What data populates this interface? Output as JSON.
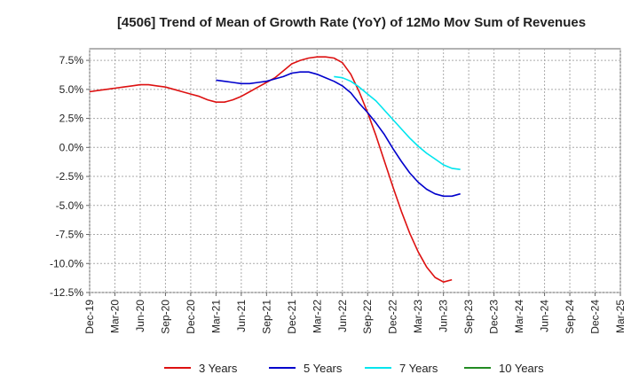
{
  "chart_data": {
    "type": "line",
    "title": "[4506]  Trend of Mean of Growth Rate (YoY) of 12Mo Mov Sum of Revenues",
    "xlabel": "",
    "ylabel": "",
    "x_ticks": [
      "Dec-19",
      "Mar-20",
      "Jun-20",
      "Sep-20",
      "Dec-20",
      "Mar-21",
      "Jun-21",
      "Sep-21",
      "Dec-21",
      "Mar-22",
      "Jun-22",
      "Sep-22",
      "Dec-22",
      "Mar-23",
      "Jun-23",
      "Sep-23",
      "Dec-23",
      "Mar-24",
      "Jun-24",
      "Sep-24",
      "Dec-24",
      "Mar-25"
    ],
    "y_ticks": [
      "7.5%",
      "5.0%",
      "2.5%",
      "0.0%",
      "-2.5%",
      "-5.0%",
      "-7.5%",
      "-10.0%",
      "-12.5%"
    ],
    "y_tick_values": [
      7.5,
      5.0,
      2.5,
      0.0,
      -2.5,
      -5.0,
      -7.5,
      -10.0,
      -12.5
    ],
    "ylim": [
      -12.5,
      8.5
    ],
    "grid": true,
    "legend_position": "bottom",
    "series": [
      {
        "name": "3 Years",
        "color": "#dd1111",
        "start_index": 0,
        "values": [
          4.8,
          4.9,
          5.0,
          5.1,
          5.2,
          5.3,
          5.4,
          5.4,
          5.3,
          5.2,
          5.0,
          4.8,
          4.6,
          4.4,
          4.1,
          3.9,
          3.9,
          4.1,
          4.4,
          4.8,
          5.2,
          5.6,
          6.0,
          6.6,
          7.2,
          7.5,
          7.7,
          7.8,
          7.8,
          7.7,
          7.3,
          6.3,
          4.8,
          3.0,
          1.0,
          -1.2,
          -3.4,
          -5.5,
          -7.4,
          -9.0,
          -10.3,
          -11.2,
          -11.6,
          -11.4
        ]
      },
      {
        "name": "5 Years",
        "color": "#0000cc",
        "start_index": 15,
        "values": [
          5.8,
          5.7,
          5.6,
          5.5,
          5.5,
          5.6,
          5.7,
          5.9,
          6.1,
          6.4,
          6.5,
          6.5,
          6.3,
          6.0,
          5.7,
          5.3,
          4.7,
          3.8,
          3.0,
          2.1,
          1.1,
          -0.1,
          -1.2,
          -2.2,
          -3.0,
          -3.6,
          -4.0,
          -4.2,
          -4.2,
          -4.0
        ]
      },
      {
        "name": "7 Years",
        "color": "#00e5ee",
        "start_index": 29,
        "values": [
          6.1,
          6.0,
          5.7,
          5.2,
          4.6,
          4.0,
          3.2,
          2.4,
          1.6,
          0.8,
          0.1,
          -0.5,
          -1.0,
          -1.5,
          -1.8,
          -1.9
        ]
      },
      {
        "name": "10 Years",
        "color": "#228b22",
        "start_index": 0,
        "values": []
      }
    ]
  }
}
